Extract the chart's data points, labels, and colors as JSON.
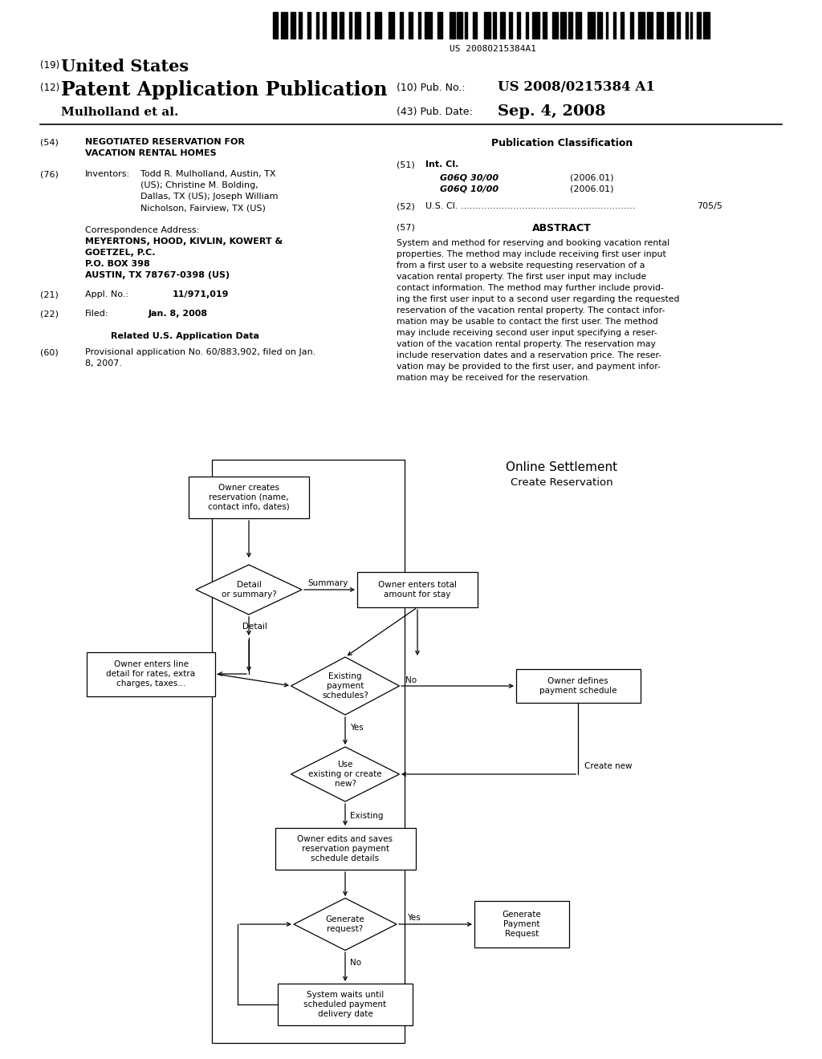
{
  "barcode_text": "US 20080215384A1",
  "header": {
    "number19": "(19)",
    "united_states": "United States",
    "number12": "(12)",
    "patent_app": "Patent Application Publication",
    "applicant": "Mulholland et al.",
    "pub_no_label": "(10) Pub. No.:",
    "pub_no": "US 2008/0215384 A1",
    "pub_date_label": "(43) Pub. Date:",
    "pub_date": "Sep. 4, 2008"
  },
  "left_col": {
    "num54": "(54)",
    "title_line1": "NEGOTIATED RESERVATION FOR",
    "title_line2": "VACATION RENTAL HOMES",
    "num76": "(76)",
    "inventors_label": "Inventors:",
    "inv1": "Todd R. Mulholland, Austin, TX",
    "inv2": "(US); Christine M. Bolding,",
    "inv3": "Dallas, TX (US); Joseph William",
    "inv4": "Nicholson, Fairview, TX (US)",
    "corr_label": "Correspondence Address:",
    "corr_firm1": "MEYERTONS, HOOD, KIVLIN, KOWERT &",
    "corr_firm2": "GOETZEL, P.C.",
    "corr_addr1": "P.O. BOX 398",
    "corr_addr2": "AUSTIN, TX 78767-0398 (US)",
    "num21": "(21)",
    "appl_label": "Appl. No.:",
    "appl_no": "11/971,019",
    "num22": "(22)",
    "filed_label": "Filed:",
    "filed_date": "Jan. 8, 2008",
    "related_title": "Related U.S. Application Data",
    "num60": "(60)",
    "prov1": "Provisional application No. 60/883,902, filed on Jan.",
    "prov2": "8, 2007."
  },
  "right_col": {
    "pub_class_title": "Publication Classification",
    "num51": "(51)",
    "intcl_label": "Int. Cl.",
    "intcl1": "G06Q 30/00",
    "intcl1_date": "(2006.01)",
    "intcl2": "G06Q 10/00",
    "intcl2_date": "(2006.01)",
    "num52": "(52)",
    "uscl_label": "U.S. Cl. ............................................................",
    "uscl_val": "705/5",
    "num57": "(57)",
    "abstract_title": "ABSTRACT",
    "abs1": "System and method for reserving and booking vacation rental",
    "abs2": "properties. The method may include receiving first user input",
    "abs3": "from a first user to a website requesting reservation of a",
    "abs4": "vacation rental property. The first user input may include",
    "abs5": "contact information. The method may further include provid-",
    "abs6": "ing the first user input to a second user regarding the requested",
    "abs7": "reservation of the vacation rental property. The contact infor-",
    "abs8": "mation may be usable to contact the first user. The method",
    "abs9": "may include receiving second user input specifying a reser-",
    "abs10": "vation of the vacation rental property. The reservation may",
    "abs11": "include reservation dates and a reservation price. The reser-",
    "abs12": "vation may be provided to the first user, and payment infor-",
    "abs13": "mation may be received for the reservation."
  },
  "flowchart": {
    "title_line1": "Online Settlement",
    "title_line2": "Create Reservation"
  },
  "bg_color": "#ffffff"
}
